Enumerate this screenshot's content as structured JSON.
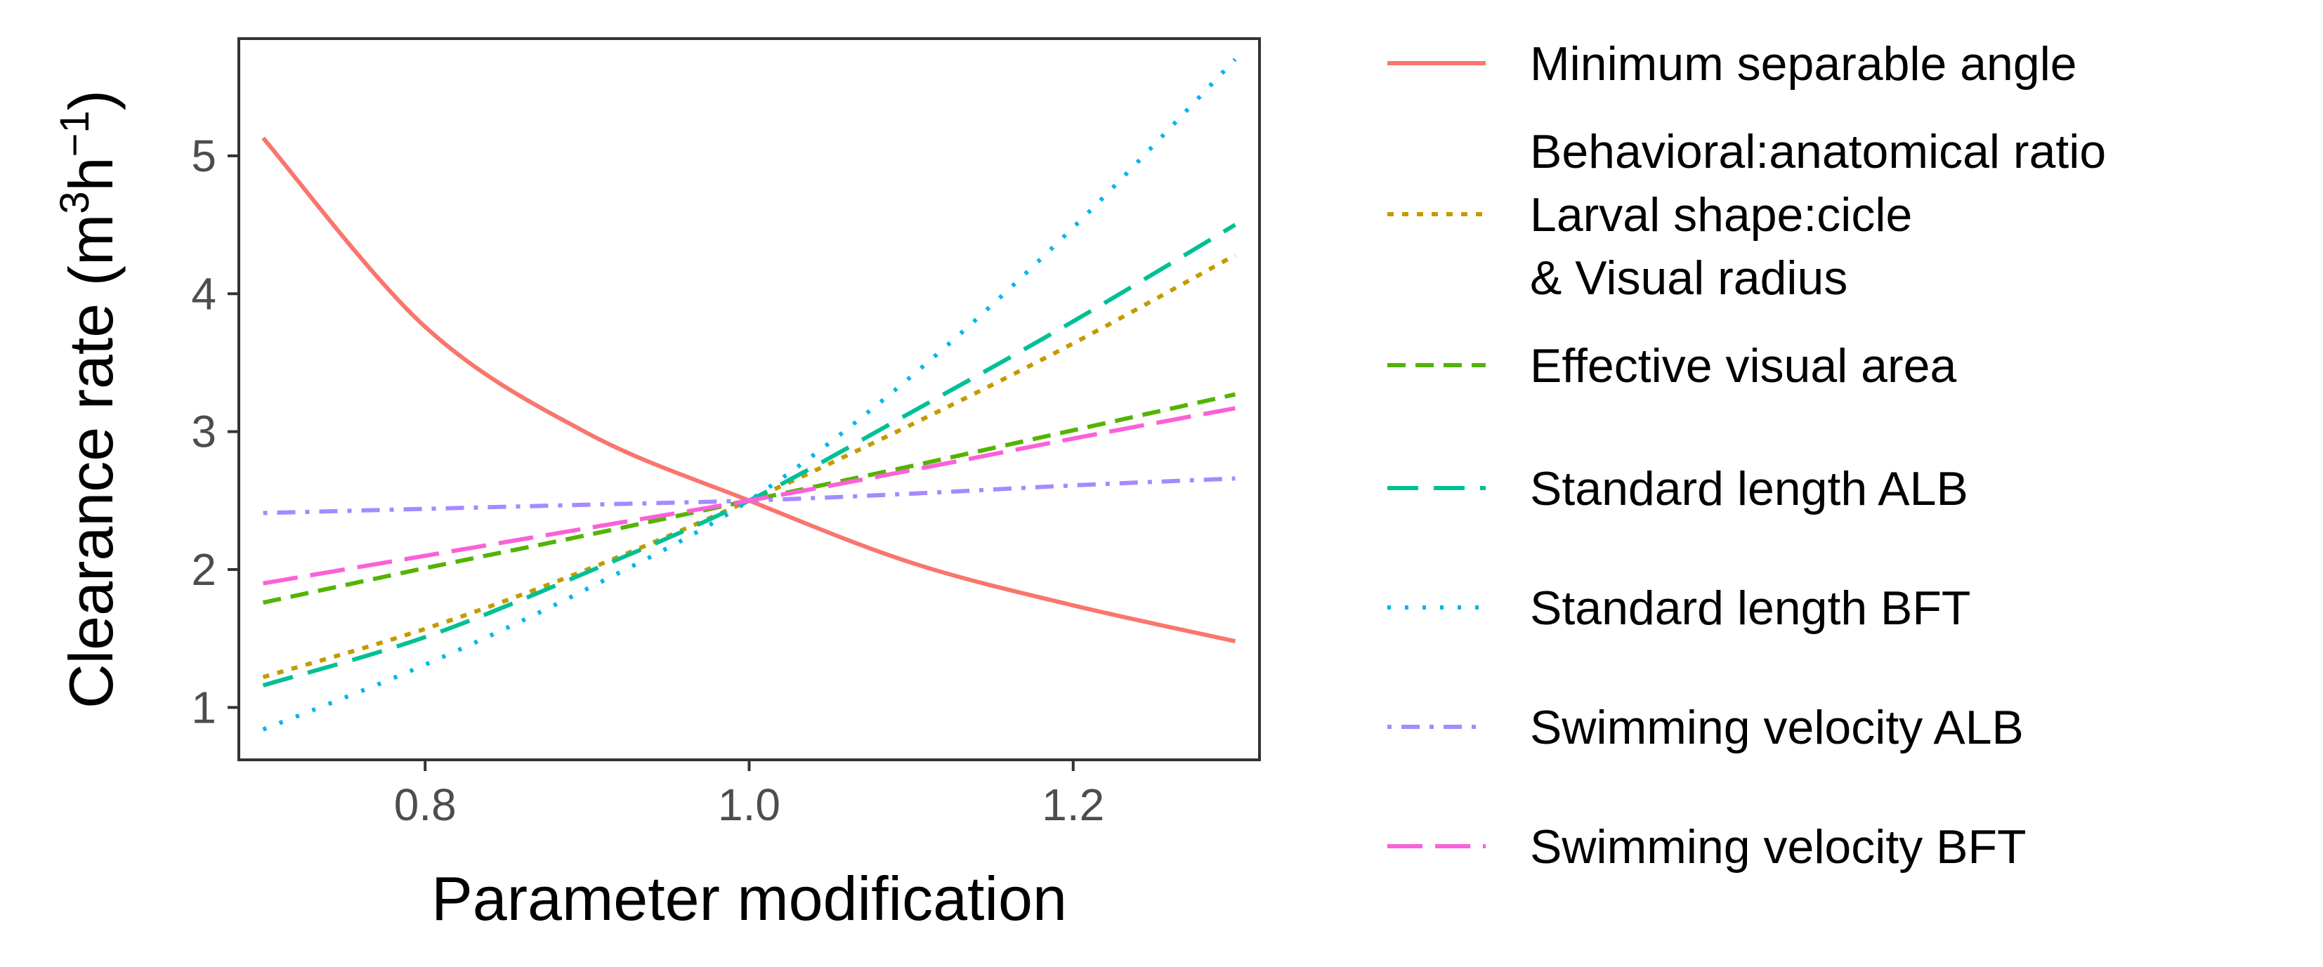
{
  "chart_data": {
    "type": "line",
    "xlabel": "Parameter modification",
    "ylabel": {
      "prefix": "Clearance rate (m",
      "sup1": "3",
      "mid": "h",
      "sup2": "−1",
      "suffix": ")"
    },
    "xlim": [
      0.685,
      1.315
    ],
    "ylim": [
      0.62,
      5.85
    ],
    "xticks": [
      {
        "value": 0.8,
        "label": "0.8"
      },
      {
        "value": 1.0,
        "label": "1.0"
      },
      {
        "value": 1.2,
        "label": "1.2"
      }
    ],
    "yticks": [
      {
        "value": 1,
        "label": "1"
      },
      {
        "value": 2,
        "label": "2"
      },
      {
        "value": 3,
        "label": "3"
      },
      {
        "value": 4,
        "label": "4"
      },
      {
        "value": 5,
        "label": "5"
      }
    ],
    "grid": false,
    "legend_position": "right",
    "x": [
      0.7,
      0.8,
      0.9,
      1.0,
      1.1,
      1.2,
      1.3
    ],
    "series": [
      {
        "name": "Minimum separable angle",
        "color": "#F8766D",
        "dash": "solid",
        "values": [
          5.13,
          3.76,
          2.99,
          2.5,
          2.05,
          1.74,
          1.48
        ]
      },
      {
        "name": [
          "Behavioral:anatomical ratio",
          "Larval shape:cicle",
          "& Visual radius"
        ],
        "color": "#C49A00",
        "dash": "dotted",
        "values": [
          1.22,
          1.57,
          2.0,
          2.5,
          3.05,
          3.64,
          4.28
        ]
      },
      {
        "name": "Effective visual area",
        "color": "#53B400",
        "dash": "dashed",
        "values": [
          1.76,
          2.01,
          2.25,
          2.5,
          2.75,
          3.01,
          3.27
        ]
      },
      {
        "name": "Standard length ALB",
        "color": "#00C094",
        "dash": "longdash",
        "values": [
          1.16,
          1.51,
          1.98,
          2.5,
          3.14,
          3.8,
          4.5
        ]
      },
      {
        "name": "Standard length BFT",
        "color": "#00B6EB",
        "dash": "dotted-fine",
        "values": [
          0.84,
          1.31,
          1.86,
          2.5,
          3.4,
          4.48,
          5.7
        ]
      },
      {
        "name": "Swimming velocity ALB",
        "color": "#A58AFF",
        "dash": "dotdash",
        "values": [
          2.41,
          2.44,
          2.47,
          2.5,
          2.55,
          2.61,
          2.66
        ]
      },
      {
        "name": "Swimming velocity BFT",
        "color": "#FB61D7",
        "dash": "longdash2",
        "values": [
          1.9,
          2.1,
          2.3,
          2.5,
          2.72,
          2.95,
          3.17
        ]
      }
    ]
  }
}
